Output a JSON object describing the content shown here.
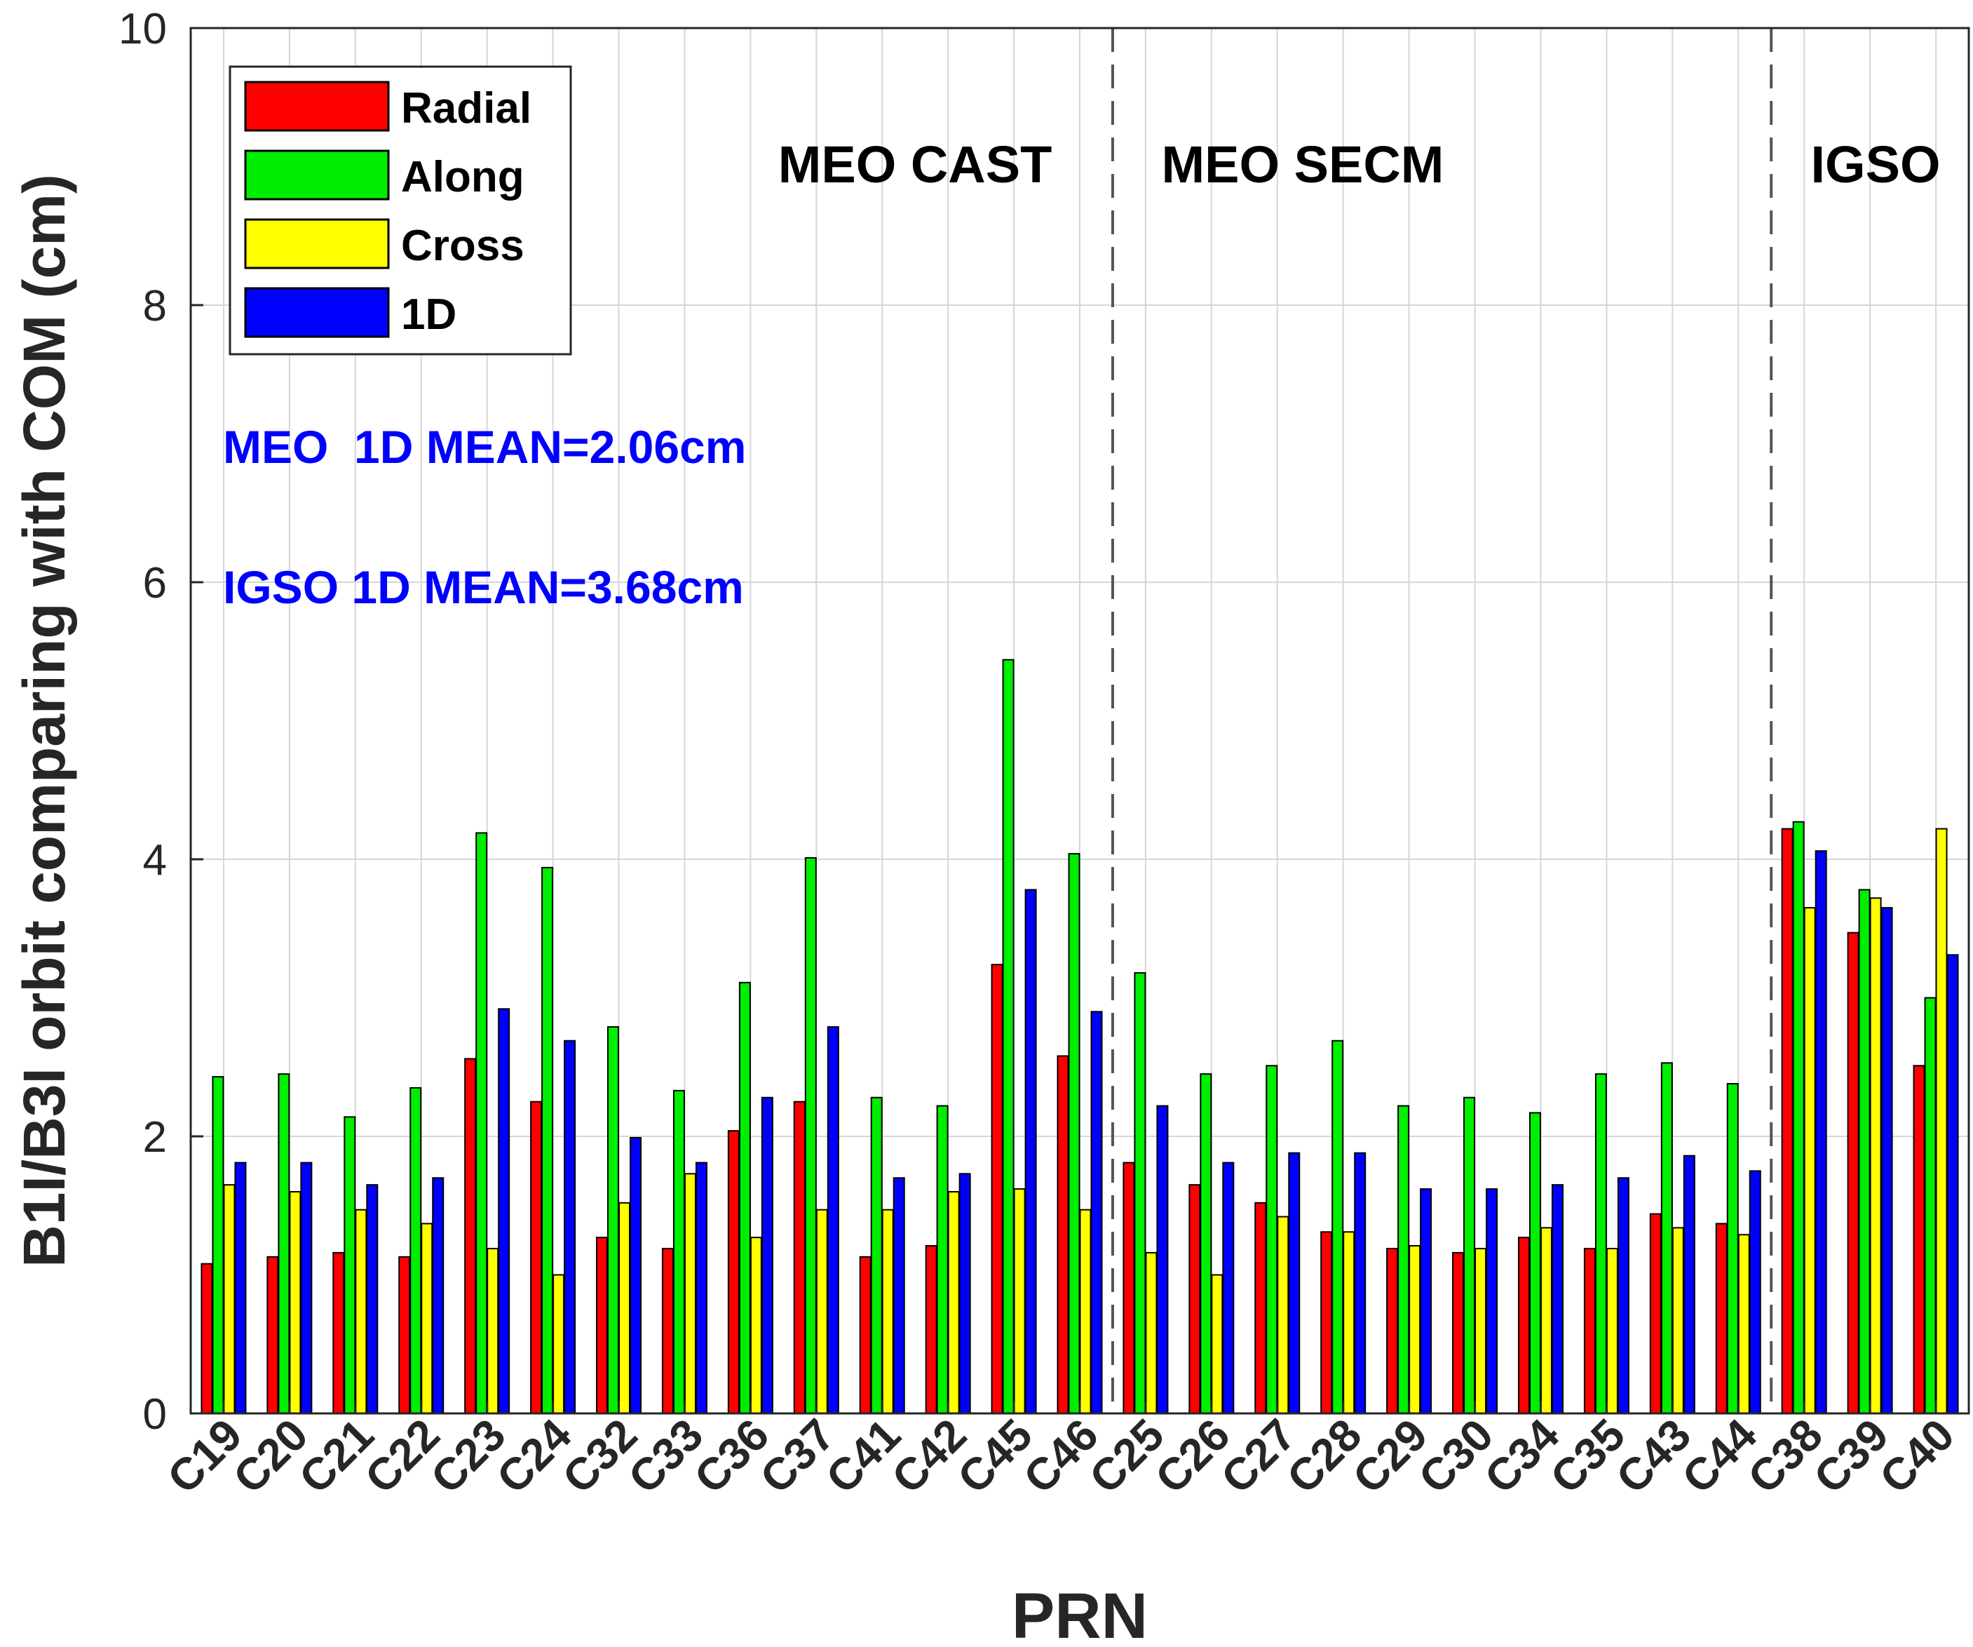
{
  "chart_data": {
    "type": "bar",
    "xlabel": "PRN",
    "ylabel": "B1I/B3I orbit comparing with COM (cm)",
    "ylim": [
      0,
      10
    ],
    "yticks": [
      0,
      2,
      4,
      6,
      8,
      10
    ],
    "grid": true,
    "legend_position": "top-left",
    "categories": [
      "C19",
      "C20",
      "C21",
      "C22",
      "C23",
      "C24",
      "C32",
      "C33",
      "C36",
      "C37",
      "C41",
      "C42",
      "C45",
      "C46",
      "C25",
      "C26",
      "C27",
      "C28",
      "C29",
      "C30",
      "C34",
      "C35",
      "C43",
      "C44",
      "C38",
      "C39",
      "C40"
    ],
    "series": [
      {
        "name": "Radial",
        "color": "#ff0000",
        "values": [
          1.08,
          1.13,
          1.16,
          1.13,
          2.56,
          2.25,
          1.27,
          1.19,
          2.04,
          2.25,
          1.13,
          1.21,
          3.24,
          2.58,
          1.81,
          1.65,
          1.52,
          1.31,
          1.19,
          1.16,
          1.27,
          1.19,
          1.44,
          1.37,
          4.22,
          3.47,
          2.51
        ]
      },
      {
        "name": "Along",
        "color": "#00ee00",
        "values": [
          2.43,
          2.45,
          2.14,
          2.35,
          4.19,
          3.94,
          2.79,
          2.33,
          3.11,
          4.01,
          2.28,
          2.22,
          5.44,
          4.04,
          3.18,
          2.45,
          2.51,
          2.69,
          2.22,
          2.28,
          2.17,
          2.45,
          2.53,
          2.38,
          4.27,
          3.78,
          3.0
        ]
      },
      {
        "name": "Cross",
        "color": "#ffff00",
        "values": [
          1.65,
          1.6,
          1.47,
          1.37,
          1.19,
          1.0,
          1.52,
          1.73,
          1.27,
          1.47,
          1.47,
          1.6,
          1.62,
          1.47,
          1.16,
          1.0,
          1.42,
          1.31,
          1.21,
          1.19,
          1.34,
          1.19,
          1.34,
          1.29,
          3.65,
          3.72,
          4.22
        ]
      },
      {
        "name": "1D",
        "color": "#0000ff",
        "values": [
          1.81,
          1.81,
          1.65,
          1.7,
          2.92,
          2.69,
          1.99,
          1.81,
          2.28,
          2.79,
          1.7,
          1.73,
          3.78,
          2.9,
          2.22,
          1.81,
          1.88,
          1.88,
          1.62,
          1.62,
          1.65,
          1.7,
          1.86,
          1.75,
          4.06,
          3.65,
          3.31
        ]
      }
    ],
    "group_dividers_after": [
      "C46",
      "C44"
    ],
    "group_labels": [
      "MEO CAST",
      "MEO SECM",
      "IGSO"
    ],
    "annotations": [
      "MEO  1D MEAN=2.06cm",
      "IGSO 1D MEAN=3.68cm"
    ],
    "annotation_color": "#0000ff"
  }
}
